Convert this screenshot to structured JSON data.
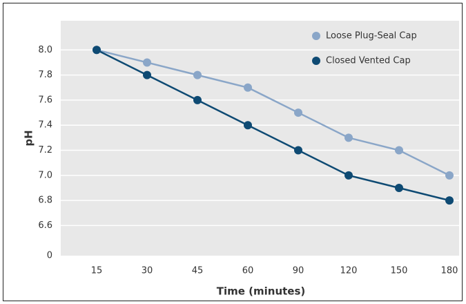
{
  "chart_data": {
    "type": "line",
    "x_label": "Time (minutes)",
    "y_label": "pH",
    "categories": [
      "15",
      "30",
      "45",
      "60",
      "90",
      "120",
      "150",
      "180"
    ],
    "series": [
      {
        "name": "Loose Plug-Seal Cap",
        "color": "#8aa6c8",
        "values": [
          8.0,
          7.9,
          7.8,
          7.7,
          7.5,
          7.3,
          7.2,
          7.0
        ]
      },
      {
        "name": "Closed Vented Cap",
        "color": "#0e4a73",
        "values": [
          8.0,
          7.8,
          7.6,
          7.4,
          7.2,
          7.0,
          6.9,
          6.8
        ]
      }
    ],
    "ylim": [
      6.36,
      8.2
    ],
    "yticks": [
      {
        "value": 6.6,
        "label": "6.6"
      },
      {
        "value": 6.8,
        "label": "6.8"
      },
      {
        "value": 7.0,
        "label": "7.0"
      },
      {
        "value": 7.2,
        "label": "7.2"
      },
      {
        "value": 7.4,
        "label": "7.4"
      },
      {
        "value": 7.6,
        "label": "7.6"
      },
      {
        "value": 7.8,
        "label": "7.8"
      },
      {
        "value": 8.0,
        "label": "8.0"
      }
    ],
    "y_origin_label": "0",
    "grid": true,
    "legend": "top-right",
    "background": "#e8e8e8"
  }
}
